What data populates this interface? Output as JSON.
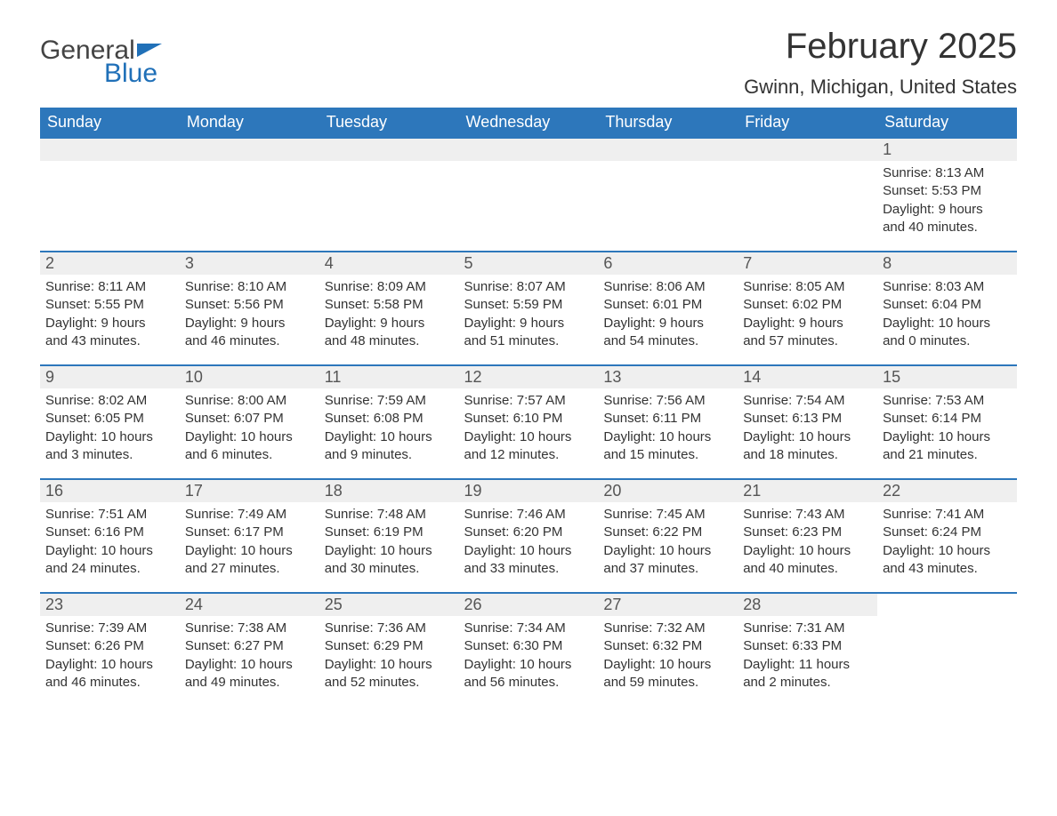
{
  "logo": {
    "general": "General",
    "blue": "Blue"
  },
  "title": "February 2025",
  "location": "Gwinn, Michigan, United States",
  "colors": {
    "header_bg": "#2d77bb",
    "header_text": "#ffffff",
    "row_border": "#2d77bb",
    "daynum_bg": "#efefef",
    "logo_blue": "#2070b8",
    "text": "#333333"
  },
  "weekdays": [
    "Sunday",
    "Monday",
    "Tuesday",
    "Wednesday",
    "Thursday",
    "Friday",
    "Saturday"
  ],
  "weeks": [
    [
      null,
      null,
      null,
      null,
      null,
      null,
      {
        "n": "1",
        "sunrise": "8:13 AM",
        "sunset": "5:53 PM",
        "day_h": "9",
        "day_m": "40"
      }
    ],
    [
      {
        "n": "2",
        "sunrise": "8:11 AM",
        "sunset": "5:55 PM",
        "day_h": "9",
        "day_m": "43"
      },
      {
        "n": "3",
        "sunrise": "8:10 AM",
        "sunset": "5:56 PM",
        "day_h": "9",
        "day_m": "46"
      },
      {
        "n": "4",
        "sunrise": "8:09 AM",
        "sunset": "5:58 PM",
        "day_h": "9",
        "day_m": "48"
      },
      {
        "n": "5",
        "sunrise": "8:07 AM",
        "sunset": "5:59 PM",
        "day_h": "9",
        "day_m": "51"
      },
      {
        "n": "6",
        "sunrise": "8:06 AM",
        "sunset": "6:01 PM",
        "day_h": "9",
        "day_m": "54"
      },
      {
        "n": "7",
        "sunrise": "8:05 AM",
        "sunset": "6:02 PM",
        "day_h": "9",
        "day_m": "57"
      },
      {
        "n": "8",
        "sunrise": "8:03 AM",
        "sunset": "6:04 PM",
        "day_h": "10",
        "day_m": "0"
      }
    ],
    [
      {
        "n": "9",
        "sunrise": "8:02 AM",
        "sunset": "6:05 PM",
        "day_h": "10",
        "day_m": "3"
      },
      {
        "n": "10",
        "sunrise": "8:00 AM",
        "sunset": "6:07 PM",
        "day_h": "10",
        "day_m": "6"
      },
      {
        "n": "11",
        "sunrise": "7:59 AM",
        "sunset": "6:08 PM",
        "day_h": "10",
        "day_m": "9"
      },
      {
        "n": "12",
        "sunrise": "7:57 AM",
        "sunset": "6:10 PM",
        "day_h": "10",
        "day_m": "12"
      },
      {
        "n": "13",
        "sunrise": "7:56 AM",
        "sunset": "6:11 PM",
        "day_h": "10",
        "day_m": "15"
      },
      {
        "n": "14",
        "sunrise": "7:54 AM",
        "sunset": "6:13 PM",
        "day_h": "10",
        "day_m": "18"
      },
      {
        "n": "15",
        "sunrise": "7:53 AM",
        "sunset": "6:14 PM",
        "day_h": "10",
        "day_m": "21"
      }
    ],
    [
      {
        "n": "16",
        "sunrise": "7:51 AM",
        "sunset": "6:16 PM",
        "day_h": "10",
        "day_m": "24"
      },
      {
        "n": "17",
        "sunrise": "7:49 AM",
        "sunset": "6:17 PM",
        "day_h": "10",
        "day_m": "27"
      },
      {
        "n": "18",
        "sunrise": "7:48 AM",
        "sunset": "6:19 PM",
        "day_h": "10",
        "day_m": "30"
      },
      {
        "n": "19",
        "sunrise": "7:46 AM",
        "sunset": "6:20 PM",
        "day_h": "10",
        "day_m": "33"
      },
      {
        "n": "20",
        "sunrise": "7:45 AM",
        "sunset": "6:22 PM",
        "day_h": "10",
        "day_m": "37"
      },
      {
        "n": "21",
        "sunrise": "7:43 AM",
        "sunset": "6:23 PM",
        "day_h": "10",
        "day_m": "40"
      },
      {
        "n": "22",
        "sunrise": "7:41 AM",
        "sunset": "6:24 PM",
        "day_h": "10",
        "day_m": "43"
      }
    ],
    [
      {
        "n": "23",
        "sunrise": "7:39 AM",
        "sunset": "6:26 PM",
        "day_h": "10",
        "day_m": "46"
      },
      {
        "n": "24",
        "sunrise": "7:38 AM",
        "sunset": "6:27 PM",
        "day_h": "10",
        "day_m": "49"
      },
      {
        "n": "25",
        "sunrise": "7:36 AM",
        "sunset": "6:29 PM",
        "day_h": "10",
        "day_m": "52"
      },
      {
        "n": "26",
        "sunrise": "7:34 AM",
        "sunset": "6:30 PM",
        "day_h": "10",
        "day_m": "56"
      },
      {
        "n": "27",
        "sunrise": "7:32 AM",
        "sunset": "6:32 PM",
        "day_h": "10",
        "day_m": "59"
      },
      {
        "n": "28",
        "sunrise": "7:31 AM",
        "sunset": "6:33 PM",
        "day_h": "11",
        "day_m": "2"
      },
      null
    ]
  ],
  "labels": {
    "sunrise": "Sunrise:",
    "sunset": "Sunset:",
    "daylight": "Daylight:",
    "hours": "hours",
    "and": "and",
    "minutes": "minutes."
  }
}
